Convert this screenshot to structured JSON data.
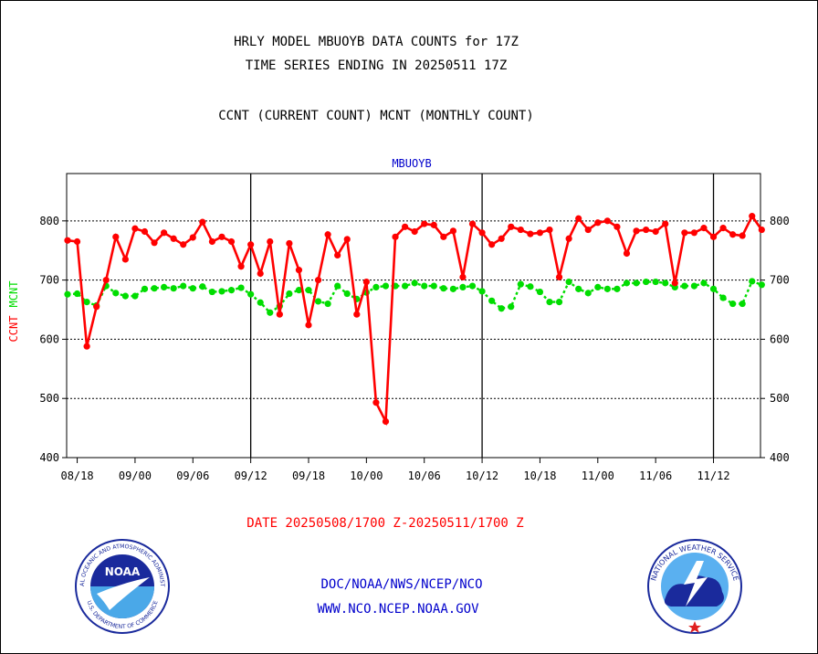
{
  "title_line1": "HRLY MODEL MBUOYB DATA COUNTS for 17Z",
  "title_line2": "TIME SERIES ENDING IN 20250511 17Z",
  "subtitle": "CCNT (CURRENT COUNT) MCNT (MONTHLY COUNT)",
  "panel_label": "MBUOYB",
  "y_label_left_ccnt": "CCNT",
  "y_label_left_mcnt": "MCNT",
  "date_range": "DATE 20250508/1700 Z-20250511/1700 Z",
  "footer_line1": "DOC/NOAA/NWS/NCEP/NCO",
  "footer_line2": "WWW.NCO.NCEP.NOAA.GOV",
  "noaa_logo_text": "NOAA",
  "noaa_ring_top": "NATIONAL OCEANIC AND ATMOSPHERIC ADMINISTRATION",
  "noaa_ring_bottom": "U.S. DEPARTMENT OF COMMERCE",
  "nws_ring_text": "NATIONAL WEATHER SERVICE",
  "colors": {
    "ccnt": "#ff0000",
    "mcnt": "#00dd00",
    "blue": "#0000cc"
  },
  "chart_data": {
    "type": "line",
    "ylim": [
      400,
      880
    ],
    "yticks": [
      400,
      500,
      600,
      700,
      800
    ],
    "grid_y": [
      500,
      600,
      700,
      800
    ],
    "x_tick_labels": [
      "08/18",
      "09/00",
      "09/06",
      "09/12",
      "09/18",
      "10/00",
      "10/06",
      "10/12",
      "10/18",
      "11/00",
      "11/06",
      "11/12"
    ],
    "x_tick_index": [
      1,
      7,
      13,
      19,
      25,
      31,
      37,
      43,
      49,
      55,
      61,
      67
    ],
    "day_boundary_index": [
      19,
      43,
      67
    ],
    "n_points": 73,
    "series": [
      {
        "name": "CCNT",
        "color": "#ff0000",
        "values": [
          767,
          765,
          588,
          655,
          700,
          773,
          735,
          787,
          782,
          763,
          780,
          770,
          760,
          772,
          798,
          765,
          773,
          765,
          723,
          760,
          711,
          765,
          642,
          762,
          717,
          624,
          700,
          777,
          742,
          769,
          642,
          697,
          493,
          461,
          773,
          790,
          782,
          795,
          793,
          773,
          783,
          705,
          795,
          780,
          760,
          770,
          790,
          785,
          778,
          780,
          785,
          705,
          770,
          804,
          785,
          797,
          800,
          790,
          745,
          783,
          785,
          782,
          795,
          695,
          780,
          780,
          788,
          773,
          788,
          777,
          775,
          808,
          785
        ]
      },
      {
        "name": "MCNT",
        "color": "#00dd00",
        "values": [
          676,
          677,
          663,
          657,
          690,
          678,
          673,
          673,
          685,
          686,
          688,
          686,
          690,
          686,
          689,
          680,
          681,
          683,
          687,
          676,
          662,
          645,
          656,
          677,
          683,
          683,
          664,
          660,
          690,
          677,
          668,
          679,
          688,
          690,
          690,
          690,
          695,
          690,
          690,
          686,
          685,
          688,
          690,
          681,
          665,
          652,
          655,
          693,
          689,
          680,
          663,
          663,
          697,
          685,
          678,
          688,
          685,
          685,
          695,
          695,
          697,
          697,
          695,
          688,
          690,
          690,
          695,
          685,
          670,
          660,
          660,
          698,
          692
        ]
      }
    ]
  }
}
